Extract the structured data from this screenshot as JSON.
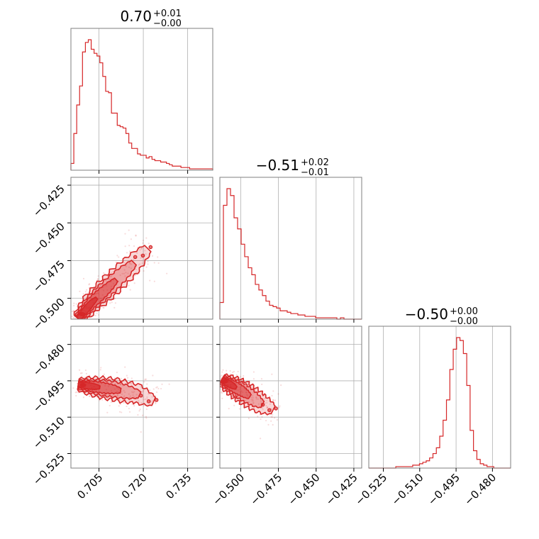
{
  "chart_data": {
    "type": "corner",
    "color": "#d62728",
    "parameters": [
      {
        "title": {
          "median": "0.70",
          "plus": "+0.01",
          "minus": "−0.00"
        },
        "range": [
          0.6955,
          0.7435
        ],
        "ticks": [
          0.705,
          0.72,
          0.735
        ],
        "tick_labels": [
          "0.705",
          "0.720",
          "0.735"
        ]
      },
      {
        "title": {
          "median": "−0.51",
          "plus": "+0.02",
          "minus": "−0.01"
        },
        "range": [
          -0.5138,
          -0.4198
        ],
        "ticks": [
          -0.5,
          -0.475,
          -0.45,
          -0.425
        ],
        "tick_labels": [
          "−0.500",
          "−0.475",
          "−0.450",
          "−0.425"
        ]
      },
      {
        "title": {
          "median": "−0.50",
          "plus": "+0.00",
          "minus": "−0.00"
        },
        "range": [
          -0.531,
          -0.4725
        ],
        "ticks": [
          -0.525,
          -0.51,
          -0.495,
          -0.48
        ],
        "tick_labels": [
          "−0.525",
          "−0.510",
          "−0.495",
          "−0.480"
        ]
      }
    ],
    "histograms": [
      {
        "param": 0,
        "bin_edges_range": [
          0.6955,
          0.7435
        ],
        "counts": [
          5,
          27,
          48,
          62,
          87,
          94,
          96,
          89,
          86,
          84,
          79,
          69,
          58,
          57,
          42,
          42,
          33,
          32,
          31,
          27,
          20,
          16,
          16,
          12,
          11,
          11,
          9,
          10,
          8,
          7,
          7,
          6,
          6,
          5,
          4,
          3,
          3,
          3,
          2,
          2,
          2,
          1,
          1,
          1,
          1,
          1,
          1,
          1,
          1
        ]
      },
      {
        "param": 1,
        "bin_edges_range": [
          -0.5138,
          -0.4198
        ],
        "counts": [
          12,
          82,
          94,
          89,
          73,
          65,
          54,
          45,
          37,
          32,
          25,
          21,
          17,
          13,
          10,
          9,
          8,
          6,
          6,
          5,
          4,
          4,
          3,
          3,
          2,
          2,
          2,
          1,
          1,
          1,
          1,
          1,
          1,
          0,
          1,
          0,
          0,
          0,
          0,
          0
        ]
      },
      {
        "param": 2,
        "bin_edges_range": [
          -0.531,
          -0.4725
        ],
        "counts": [
          0,
          0,
          0,
          0,
          0,
          0,
          0,
          0,
          1,
          1,
          1,
          1,
          1,
          2,
          2,
          3,
          4,
          5,
          7,
          10,
          14,
          22,
          33,
          47,
          68,
          82,
          90,
          88,
          79,
          57,
          26,
          12,
          6,
          3,
          2,
          1,
          1,
          0,
          0,
          0,
          0,
          0
        ]
      }
    ],
    "contours": [
      {
        "x_param": 0,
        "y_param": 1,
        "center": [
          0.7002,
          -0.5085
        ],
        "trend": [
          [
            0.698,
            -0.5135
          ],
          [
            0.7025,
            -0.503
          ],
          [
            0.708,
            -0.493
          ],
          [
            0.715,
            -0.48
          ],
          [
            0.7215,
            -0.467
          ]
        ]
      },
      {
        "x_param": 0,
        "y_param": 2,
        "center": [
          0.7005,
          -0.4965
        ],
        "trend": [
          [
            0.698,
            -0.4965
          ],
          [
            0.71,
            -0.4985
          ],
          [
            0.718,
            -0.5005
          ],
          [
            0.7235,
            -0.5035
          ]
        ]
      },
      {
        "x_param": 1,
        "y_param": 2,
        "center": [
          -0.5085,
          -0.4965
        ],
        "trend": [
          [
            -0.5125,
            -0.4945
          ],
          [
            -0.5,
            -0.499
          ],
          [
            -0.488,
            -0.504
          ],
          [
            -0.4785,
            -0.507
          ]
        ]
      }
    ]
  }
}
